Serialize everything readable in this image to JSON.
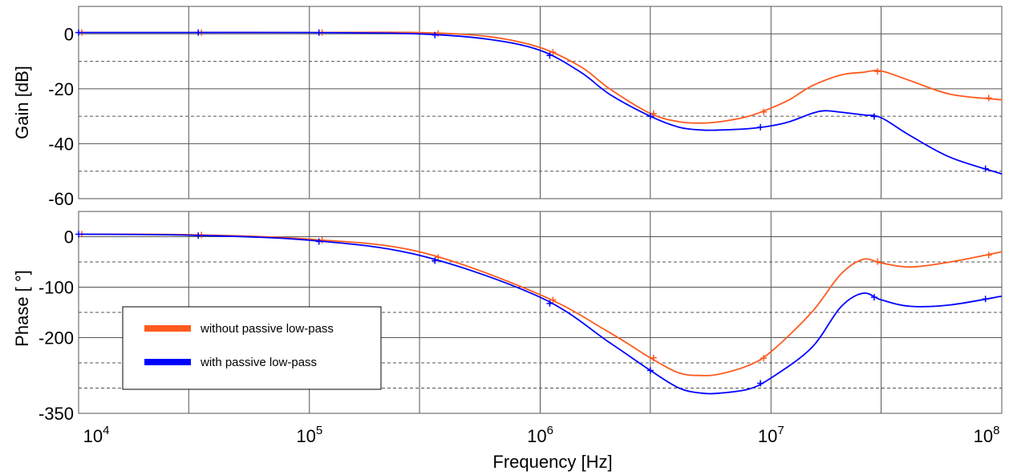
{
  "chart_data": [
    {
      "type": "line",
      "x_scale": "log",
      "xlim": [
        10000,
        100000000
      ],
      "ylim": [
        -60,
        10
      ],
      "ylabel": "Gain [dB]",
      "y_ticks": [
        "0",
        "-20",
        "-40",
        "-60"
      ],
      "grid": true,
      "series": [
        {
          "name": "without passive low-pass",
          "color": "#ff5a1e",
          "x": [
            10000,
            30000,
            100000,
            300000,
            600000,
            1000000,
            1500000,
            2000000,
            3000000,
            4000000,
            5000000,
            6000000,
            8000000,
            10000000,
            12000000,
            15000000,
            20000000,
            25000000,
            30000000,
            40000000,
            60000000,
            100000000
          ],
          "y": [
            0.5,
            0.5,
            0.5,
            0.5,
            -1,
            -5,
            -12,
            -20,
            -29,
            -32,
            -32.5,
            -32,
            -30,
            -27,
            -24,
            -19,
            -15,
            -14,
            -13.5,
            -17,
            -22,
            -24
          ]
        },
        {
          "name": "with passive low-pass",
          "color": "#0000ff",
          "x": [
            10000,
            30000,
            100000,
            300000,
            600000,
            1000000,
            1500000,
            2000000,
            3000000,
            4000000,
            5000000,
            6000000,
            8000000,
            10000000,
            12000000,
            15000000,
            17000000,
            20000000,
            25000000,
            30000000,
            40000000,
            60000000,
            100000000
          ],
          "y": [
            0.5,
            0.5,
            0.5,
            0,
            -2,
            -6,
            -14,
            -22,
            -30,
            -34,
            -35,
            -35,
            -34.5,
            -33.5,
            -32,
            -29,
            -28,
            -28.5,
            -29.5,
            -30.5,
            -37,
            -45,
            -51
          ]
        }
      ]
    },
    {
      "type": "line",
      "x_scale": "log",
      "xlim": [
        10000,
        100000000
      ],
      "ylim": [
        -350,
        50
      ],
      "ylabel": "Phase [ °]",
      "xlabel": "Frequency [Hz]",
      "y_ticks": [
        "0",
        "-100",
        "-200",
        "-350"
      ],
      "x_ticks": [
        {
          "base": "10",
          "exp": "4"
        },
        {
          "base": "10",
          "exp": "5"
        },
        {
          "base": "10",
          "exp": "6"
        },
        {
          "base": "10",
          "exp": "7"
        },
        {
          "base": "10",
          "exp": "8"
        }
      ],
      "grid": true,
      "legend": "bottom-left",
      "series": [
        {
          "name": "without passive low-pass",
          "color": "#ff5a1e",
          "x": [
            10000,
            30000,
            100000,
            300000,
            1000000,
            2000000,
            3000000,
            4000000,
            5000000,
            6000000,
            8000000,
            10000000,
            15000000,
            20000000,
            25000000,
            30000000,
            40000000,
            60000000,
            100000000
          ],
          "y": [
            5,
            4,
            -5,
            -30,
            -115,
            -190,
            -240,
            -270,
            -275,
            -272,
            -255,
            -228,
            -150,
            -75,
            -45,
            -52,
            -60,
            -50,
            -30
          ]
        },
        {
          "name": "with passive low-pass",
          "color": "#0000ff",
          "x": [
            10000,
            30000,
            100000,
            300000,
            1000000,
            2000000,
            3000000,
            4000000,
            5000000,
            6000000,
            8000000,
            10000000,
            15000000,
            20000000,
            25000000,
            30000000,
            40000000,
            60000000,
            100000000
          ],
          "y": [
            5,
            3,
            -7,
            -37,
            -120,
            -210,
            -265,
            -300,
            -310,
            -310,
            -302,
            -280,
            -220,
            -140,
            -112,
            -125,
            -138,
            -135,
            -118
          ]
        }
      ]
    }
  ],
  "legend": {
    "items": [
      {
        "label": "without passive low-pass",
        "color": "#ff5a1e"
      },
      {
        "label": "with passive low-pass",
        "color": "#0000ff"
      }
    ]
  }
}
